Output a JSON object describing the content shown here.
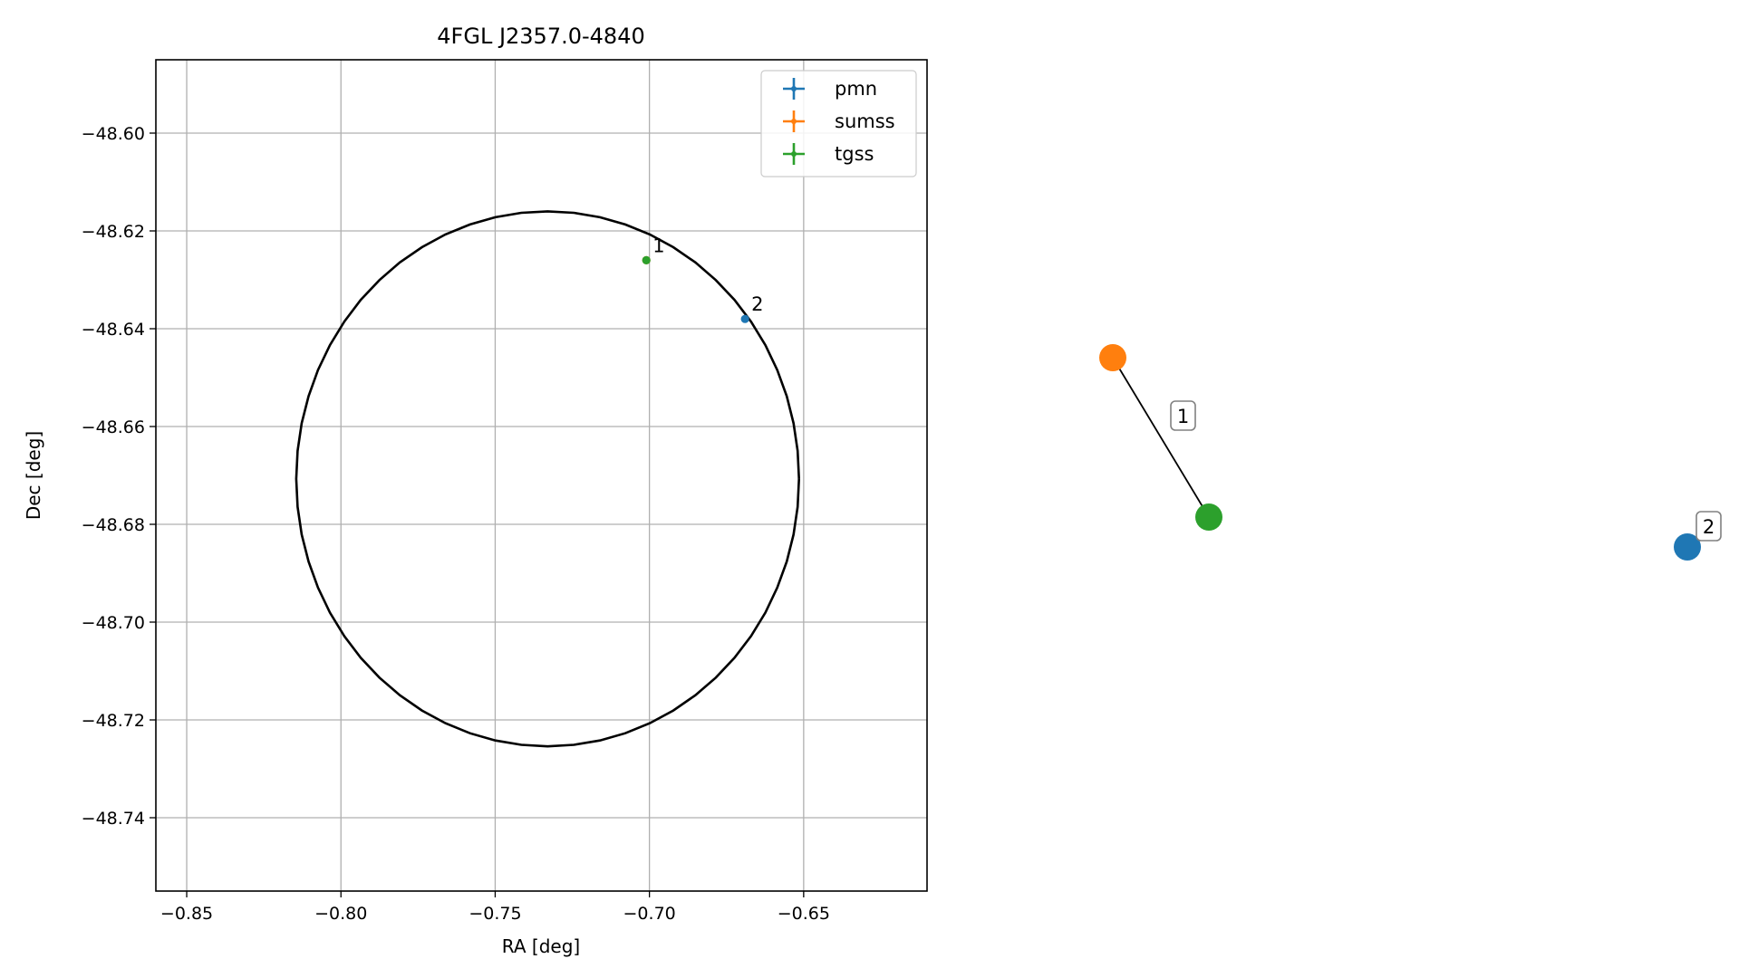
{
  "chart_data": [
    {
      "type": "scatter",
      "title": "4FGL J2357.0-4840",
      "xlabel": "RA [deg]",
      "ylabel": "Dec [deg]",
      "xlim": [
        -0.86,
        -0.61
      ],
      "ylim": [
        -48.755,
        -48.585
      ],
      "xticks": [
        -0.85,
        -0.8,
        -0.75,
        -0.7,
        -0.65
      ],
      "xtick_labels": [
        "−0.85",
        "−0.80",
        "−0.75",
        "−0.70",
        "−0.65"
      ],
      "yticks": [
        -48.6,
        -48.62,
        -48.64,
        -48.66,
        -48.68,
        -48.7,
        -48.72,
        -48.74
      ],
      "ytick_labels": [
        "−48.60",
        "−48.62",
        "−48.64",
        "−48.66",
        "−48.68",
        "−48.70",
        "−48.72",
        "−48.74"
      ],
      "grid": true,
      "legend_position": "top-right",
      "ellipse": {
        "center": [
          -0.733,
          -48.6707
        ],
        "semi_axis_x": 0.0815,
        "semi_axis_y": 0.0547,
        "color": "#000000"
      },
      "series": [
        {
          "name": "pmn",
          "color": "#1f77b4",
          "points": [
            [
              -0.669,
              -48.638
            ]
          ]
        },
        {
          "name": "sumss",
          "color": "#ff7f0e",
          "points": [
            [
              -0.701,
              -48.626
            ]
          ]
        },
        {
          "name": "tgss",
          "color": "#2ca02c",
          "points": [
            [
              -0.701,
              -48.626
            ]
          ]
        }
      ],
      "annotations": [
        {
          "text": "1",
          "x": -0.701,
          "y": -48.626
        },
        {
          "text": "2",
          "x": -0.669,
          "y": -48.638
        }
      ]
    },
    {
      "type": "network",
      "nodes": [
        {
          "id": "sumss",
          "color": "#ff7f0e"
        },
        {
          "id": "tgss",
          "color": "#2ca02c"
        },
        {
          "id": "pmn",
          "color": "#1f77b4"
        }
      ],
      "edges": [
        {
          "source": "sumss",
          "target": "tgss",
          "label": "1"
        }
      ],
      "node_labels": [
        {
          "node": "pmn",
          "text": "2"
        }
      ]
    }
  ]
}
